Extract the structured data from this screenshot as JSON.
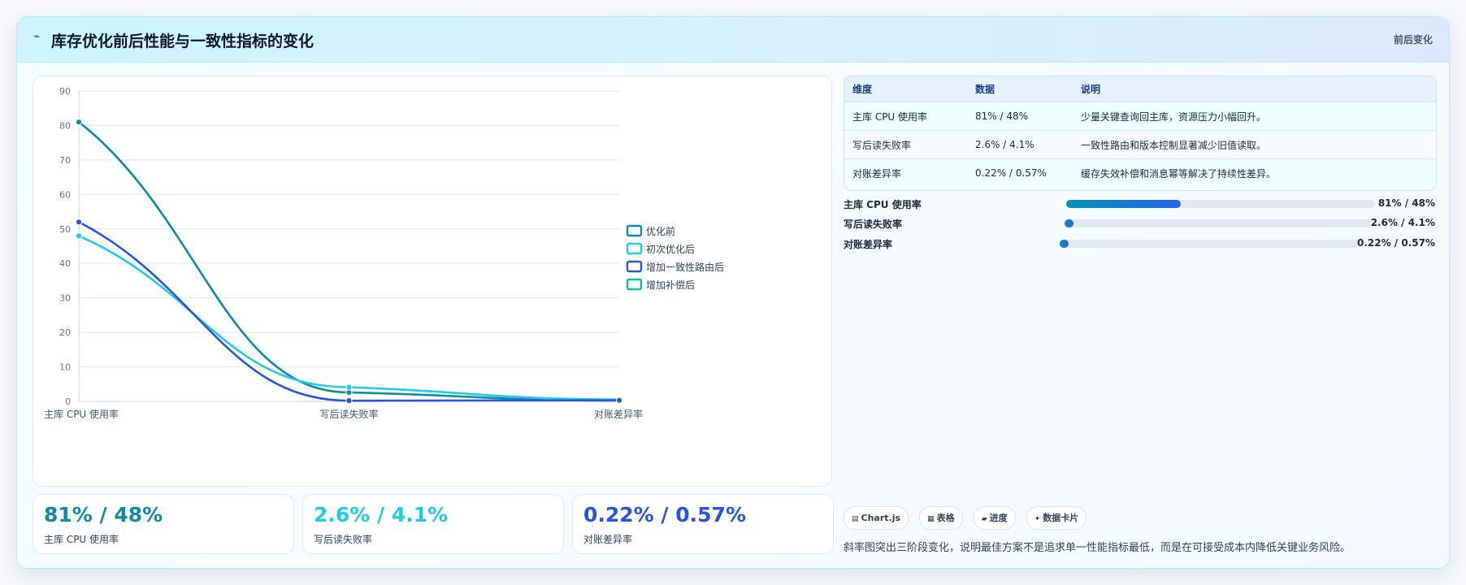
{
  "header": {
    "icon": "chart-icon",
    "title": "库存优化前后性能与一致性指标的变化",
    "badge": "前后变化"
  },
  "chart_data": {
    "type": "line",
    "categories": [
      "主库 CPU 使用率",
      "写后读失败率",
      "对账差异率"
    ],
    "ylim": [
      0,
      90
    ],
    "yticks": [
      0,
      10,
      20,
      30,
      40,
      50,
      60,
      70,
      80,
      90
    ],
    "grid": true,
    "legend_position": "right",
    "series": [
      {
        "name": "优化前",
        "color": "#0e8ba3",
        "values": [
          81,
          2.6,
          0.22
        ]
      },
      {
        "name": "初次优化后",
        "color": "#22cbe0",
        "values": [
          48,
          4.1,
          0.57
        ]
      },
      {
        "name": "增加一致性路由后",
        "color": "#2b52e0",
        "values": [
          52,
          0.2,
          0.3
        ]
      },
      {
        "name": "增加补偿后",
        "color": "#14b8a6",
        "values": [
          null,
          null,
          null
        ]
      }
    ]
  },
  "table": {
    "headers": [
      "维度",
      "数据",
      "说明"
    ],
    "rows": [
      [
        "主库 CPU 使用率",
        "81% / 48%",
        "少量关键查询回主库，资源压力小幅回升。"
      ],
      [
        "写后读失败率",
        "2.6% / 4.1%",
        "一致性路由和版本控制显著减少旧值读取。"
      ],
      [
        "对账差异率",
        "0.22% / 0.57%",
        "缓存失效补偿和消息幂等解决了持续性差异。"
      ]
    ]
  },
  "progress": [
    {
      "label": "主库 CPU 使用率",
      "value": "81% / 48%",
      "fill": 0.37
    },
    {
      "label": "写后读失败率",
      "value": "2.6% / 4.1%",
      "fill": 0.02
    },
    {
      "label": "对账差异率",
      "value": "0.22% / 0.57%",
      "fill": 0.02
    }
  ],
  "kpis": [
    {
      "value": "81% / 48%",
      "label": "主库 CPU 使用率",
      "color": "#0e8ba3"
    },
    {
      "value": "2.6% / 4.1%",
      "label": "写后读失败率",
      "color": "#22cbe0"
    },
    {
      "value": "0.22% / 0.57%",
      "label": "对账差异率",
      "color": "#2b52e0"
    }
  ],
  "tags": [
    {
      "icon": "chart-icon",
      "label": "Chart.js"
    },
    {
      "icon": "table-icon",
      "label": "表格"
    },
    {
      "icon": "progress-icon",
      "label": "进度"
    },
    {
      "icon": "card-icon",
      "label": "数据卡片"
    }
  ],
  "note": "斜率图突出三阶段变化，说明最佳方案不是追求单一性能指标最低，而是在可接受成本内降低关键业务风险。"
}
